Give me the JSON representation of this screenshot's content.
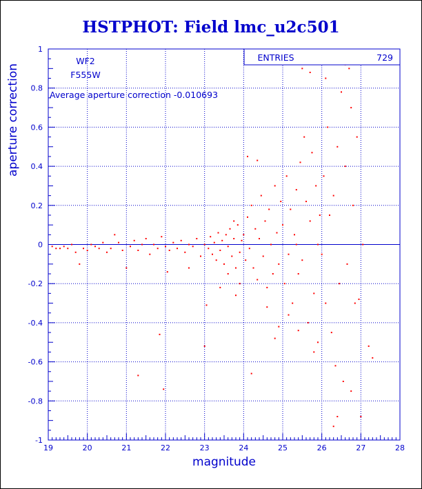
{
  "chart_data": {
    "type": "scatter",
    "title": "HSTPHOT: Field lmc_u2c501",
    "xlabel": "magnitude",
    "ylabel": "aperture correction",
    "xlim": [
      19,
      28
    ],
    "ylim": [
      -1,
      1
    ],
    "xticks": [
      "19",
      "20",
      "21",
      "22",
      "23",
      "24",
      "25",
      "26",
      "27",
      "28"
    ],
    "yticks": [
      "-1",
      "-0.8",
      "-0.6",
      "-0.4",
      "-0.2",
      "0",
      "0.2",
      "0.4",
      "0.6",
      "0.8",
      "1"
    ],
    "grid": true,
    "reference_line_y": 0,
    "annotations": {
      "chip": "WF2",
      "filter": "F555W",
      "average": "Average aperture correction -0.010693"
    },
    "stats_box": {
      "label": "ENTRIES",
      "value": "729"
    },
    "colors": {
      "title": "#0000cc",
      "axes": "#0000cc",
      "points": "#ff0000",
      "text": "#0000cc"
    },
    "series": [
      {
        "values": [
          [
            19.1,
            -0.01
          ],
          [
            19.2,
            -0.02
          ],
          [
            19.3,
            -0.02
          ],
          [
            19.4,
            -0.01
          ],
          [
            19.5,
            -0.02
          ],
          [
            19.6,
            0.0
          ],
          [
            19.7,
            -0.04
          ],
          [
            19.8,
            -0.1
          ],
          [
            19.9,
            -0.02
          ],
          [
            20.0,
            -0.03
          ],
          [
            20.1,
            0.0
          ],
          [
            20.2,
            -0.01
          ],
          [
            20.3,
            -0.02
          ],
          [
            20.4,
            0.01
          ],
          [
            20.5,
            -0.04
          ],
          [
            20.6,
            -0.02
          ],
          [
            20.7,
            0.05
          ],
          [
            20.8,
            0.01
          ],
          [
            20.9,
            -0.03
          ],
          [
            21.0,
            -0.12
          ],
          [
            21.1,
            -0.01
          ],
          [
            21.2,
            0.02
          ],
          [
            21.3,
            -0.03
          ],
          [
            21.4,
            0.0
          ],
          [
            21.5,
            0.03
          ],
          [
            21.6,
            -0.05
          ],
          [
            21.7,
            0.0
          ],
          [
            21.8,
            -0.02
          ],
          [
            21.9,
            0.04
          ],
          [
            21.85,
            -0.46
          ],
          [
            21.3,
            -0.67
          ],
          [
            21.95,
            -0.74
          ],
          [
            22.0,
            -0.01
          ],
          [
            22.1,
            -0.03
          ],
          [
            22.2,
            0.01
          ],
          [
            22.3,
            -0.02
          ],
          [
            22.4,
            0.02
          ],
          [
            22.5,
            -0.04
          ],
          [
            22.6,
            0.0
          ],
          [
            22.7,
            -0.01
          ],
          [
            22.8,
            0.03
          ],
          [
            22.9,
            -0.06
          ],
          [
            22.05,
            -0.14
          ],
          [
            22.6,
            -0.12
          ],
          [
            23.05,
            -0.31
          ],
          [
            23.0,
            -0.52
          ],
          [
            23.0,
            0.0
          ],
          [
            23.1,
            -0.02
          ],
          [
            23.15,
            0.04
          ],
          [
            23.2,
            -0.05
          ],
          [
            23.25,
            0.01
          ],
          [
            23.3,
            -0.08
          ],
          [
            23.35,
            0.06
          ],
          [
            23.4,
            -0.03
          ],
          [
            23.45,
            0.02
          ],
          [
            23.5,
            -0.1
          ],
          [
            23.55,
            0.05
          ],
          [
            23.6,
            -0.01
          ],
          [
            23.65,
            0.08
          ],
          [
            23.7,
            -0.06
          ],
          [
            23.75,
            0.03
          ],
          [
            23.8,
            -0.12
          ],
          [
            23.85,
            0.1
          ],
          [
            23.9,
            -0.04
          ],
          [
            23.95,
            0.02
          ],
          [
            23.4,
            -0.22
          ],
          [
            23.6,
            -0.15
          ],
          [
            23.75,
            0.12
          ],
          [
            23.9,
            -0.2
          ],
          [
            23.8,
            -0.26
          ],
          [
            24.0,
            0.05
          ],
          [
            24.05,
            -0.08
          ],
          [
            24.1,
            0.14
          ],
          [
            24.15,
            -0.02
          ],
          [
            24.2,
            0.2
          ],
          [
            24.25,
            -0.12
          ],
          [
            24.3,
            0.08
          ],
          [
            24.35,
            -0.18
          ],
          [
            24.4,
            0.03
          ],
          [
            24.45,
            0.25
          ],
          [
            24.5,
            -0.06
          ],
          [
            24.55,
            0.12
          ],
          [
            24.6,
            -0.22
          ],
          [
            24.65,
            0.18
          ],
          [
            24.7,
            0.0
          ],
          [
            24.75,
            -0.15
          ],
          [
            24.8,
            0.3
          ],
          [
            24.85,
            0.06
          ],
          [
            24.9,
            -0.1
          ],
          [
            24.95,
            0.22
          ],
          [
            24.1,
            0.45
          ],
          [
            24.35,
            0.43
          ],
          [
            24.2,
            -0.66
          ],
          [
            24.6,
            -0.32
          ],
          [
            24.8,
            -0.48
          ],
          [
            24.9,
            -0.42
          ],
          [
            25.0,
            0.1
          ],
          [
            25.05,
            -0.2
          ],
          [
            25.1,
            0.35
          ],
          [
            25.15,
            -0.05
          ],
          [
            25.2,
            0.18
          ],
          [
            25.25,
            -0.3
          ],
          [
            25.3,
            0.05
          ],
          [
            25.35,
            0.28
          ],
          [
            25.4,
            -0.15
          ],
          [
            25.45,
            0.42
          ],
          [
            25.5,
            -0.08
          ],
          [
            25.55,
            0.55
          ],
          [
            25.6,
            0.22
          ],
          [
            25.65,
            -0.4
          ],
          [
            25.7,
            0.12
          ],
          [
            25.75,
            0.47
          ],
          [
            25.8,
            -0.25
          ],
          [
            25.85,
            0.3
          ],
          [
            25.9,
            -0.5
          ],
          [
            25.95,
            0.15
          ],
          [
            25.15,
            -0.36
          ],
          [
            25.4,
            -0.44
          ],
          [
            25.5,
            0.9
          ],
          [
            25.7,
            0.88
          ],
          [
            25.8,
            -0.55
          ],
          [
            25.9,
            0.0
          ],
          [
            25.35,
            0.0
          ],
          [
            26.0,
            -0.05
          ],
          [
            26.05,
            0.35
          ],
          [
            26.1,
            -0.3
          ],
          [
            26.15,
            0.6
          ],
          [
            26.2,
            0.15
          ],
          [
            26.25,
            -0.45
          ],
          [
            26.3,
            0.25
          ],
          [
            26.35,
            -0.62
          ],
          [
            26.4,
            0.5
          ],
          [
            26.45,
            -0.2
          ],
          [
            26.5,
            0.78
          ],
          [
            26.55,
            -0.7
          ],
          [
            26.6,
            0.4
          ],
          [
            26.65,
            -0.1
          ],
          [
            26.7,
            0.9
          ],
          [
            26.75,
            -0.75
          ],
          [
            26.8,
            0.2
          ],
          [
            26.85,
            -0.3
          ],
          [
            26.9,
            0.55
          ],
          [
            26.1,
            0.85
          ],
          [
            26.4,
            -0.88
          ],
          [
            26.75,
            0.7
          ],
          [
            27.0,
            -0.88
          ],
          [
            26.95,
            -0.28
          ],
          [
            27.3,
            -0.58
          ],
          [
            27.2,
            -0.52
          ],
          [
            27.05,
            0.0
          ],
          [
            26.6,
            0.92
          ],
          [
            26.3,
            -0.93
          ]
        ]
      }
    ]
  }
}
